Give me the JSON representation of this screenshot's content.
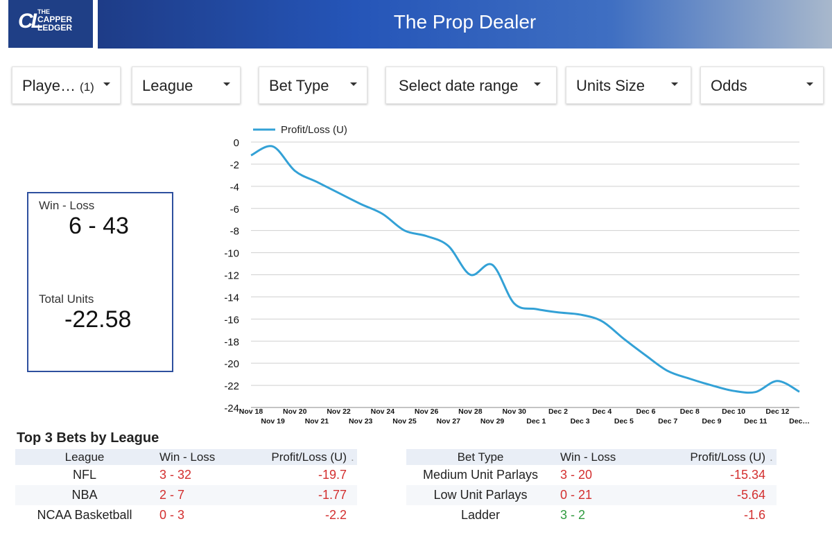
{
  "brand": {
    "logo_mark": "CL",
    "logo_line1": "THE",
    "logo_line2": "CAPPER",
    "logo_line3": "LEDGER"
  },
  "header": {
    "title": "The Prop Dealer"
  },
  "filters": [
    {
      "label": "Playe…",
      "count": "(1)"
    },
    {
      "label": "League",
      "count": ""
    },
    {
      "label": "Bet Type",
      "count": ""
    },
    {
      "label": "Select date range",
      "count": ""
    },
    {
      "label": "Units Size",
      "count": ""
    },
    {
      "label": "Odds",
      "count": ""
    }
  ],
  "kpi": {
    "win_loss_label": "Win - Loss",
    "win_loss_value": "6 - 43",
    "units_label": "Total Units",
    "units_value": "-22.58"
  },
  "chart_data": {
    "type": "line",
    "legend": "top-left",
    "grid": true,
    "ylim": [
      -24,
      0
    ],
    "yticks": [
      "0",
      "-2",
      "-4",
      "-6",
      "-8",
      "-10",
      "-12",
      "-14",
      "-16",
      "-18",
      "-20",
      "-22",
      "-24"
    ],
    "x_labels": [
      "Nov 18",
      "Nov 19",
      "Nov 20",
      "Nov 21",
      "Nov 22",
      "Nov 23",
      "Nov 24",
      "Nov 25",
      "Nov 26",
      "Nov 27",
      "Nov 28",
      "Nov 29",
      "Nov 30",
      "Dec 1",
      "Dec 2",
      "Dec 3",
      "Dec 4",
      "Dec 5",
      "Dec 6",
      "Dec 7",
      "Dec 8",
      "Dec 9",
      "Dec 10",
      "Dec 11",
      "Dec 12",
      "Dec…"
    ],
    "series": [
      {
        "name": "Profit/Loss (U)",
        "color": "#33a1d6",
        "values": [
          -1.2,
          -0.4,
          -2.6,
          -3.6,
          -4.6,
          -5.6,
          -6.5,
          -8.0,
          -8.5,
          -9.4,
          -12.0,
          -11.1,
          -14.6,
          -15.1,
          -15.4,
          -15.6,
          -16.2,
          -17.8,
          -19.3,
          -20.7,
          -21.4,
          -22.0,
          -22.5,
          -22.6,
          -21.6,
          -22.58
        ]
      }
    ]
  },
  "section_title": "Top 3 Bets by League",
  "league_table": {
    "headers": [
      "League",
      "Win - Loss",
      "Profit/Loss (U)"
    ],
    "rows": [
      {
        "name": "NFL",
        "wl": "3 - 32",
        "pl": "-19.7"
      },
      {
        "name": "NBA",
        "wl": "2 - 7",
        "pl": "-1.77"
      },
      {
        "name": "NCAA Basketball",
        "wl": "0 - 3",
        "pl": "-2.2"
      }
    ]
  },
  "bettype_table": {
    "headers": [
      "Bet Type",
      "Win - Loss",
      "Profit/Loss (U)"
    ],
    "rows": [
      {
        "name": "Medium Unit Parlays",
        "wl": "3 - 20",
        "pl": "-15.34",
        "wl_color": "#d32f2f"
      },
      {
        "name": "Low Unit Parlays",
        "wl": "0 - 21",
        "pl": "-5.64",
        "wl_color": "#d32f2f"
      },
      {
        "name": "Ladder",
        "wl": "3 - 2",
        "pl": "-1.6",
        "wl_color": "#2e9a3e"
      }
    ]
  }
}
